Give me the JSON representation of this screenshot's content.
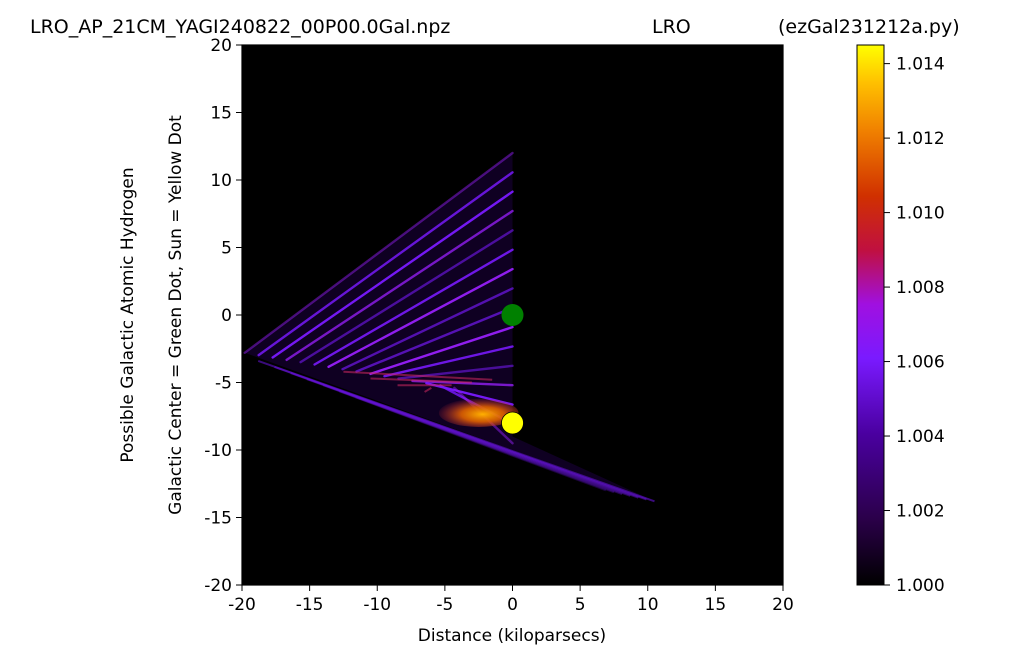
{
  "header": {
    "filename": "LRO_AP_21CM_YAGI240822_00P00.0Gal.npz",
    "station": "LRO",
    "program": "(ezGal231212a.py)"
  },
  "colors": {
    "background": "#000000",
    "violet": "#7a1aff",
    "orange": "#e08000",
    "sun_dot": "#ffff00",
    "center_dot": "#008000"
  },
  "chart_data": {
    "type": "heatmap",
    "colormap": "gnuplot",
    "xlabel": "Distance (kiloparsecs)",
    "ylabel_line1": "Possible Galactic Atomic Hydrogen",
    "ylabel_line2": "Galactic Center = Green Dot, Sun = Yellow Dot",
    "xlim": [
      -20,
      20
    ],
    "ylim": [
      -20,
      20
    ],
    "xticks": [
      -20,
      -15,
      -10,
      -5,
      0,
      5,
      10,
      15,
      20
    ],
    "yticks": [
      -20,
      -15,
      -10,
      -5,
      0,
      5,
      10,
      15,
      20
    ],
    "grid": false,
    "colorbar": {
      "min": 1.0,
      "max": 1.0145,
      "ticks": [
        "1.000",
        "1.002",
        "1.004",
        "1.006",
        "1.008",
        "1.010",
        "1.012",
        "1.014"
      ]
    },
    "markers": [
      {
        "label": "Galactic Center",
        "x": 0,
        "y": 0,
        "color": "green"
      },
      {
        "label": "Sun",
        "x": 0,
        "y": -8,
        "color": "yellow"
      }
    ],
    "emission_wedge": {
      "apex": [
        0,
        -8
      ],
      "upper_edge": [
        [
          0,
          12
        ],
        [
          -19.8,
          -2.8
        ]
      ],
      "lower_edge": [
        [
          -19.8,
          -2.8
        ],
        [
          10.5,
          -13.8
        ]
      ],
      "peak_region": {
        "x": [
          -5,
          0
        ],
        "y": [
          -8,
          -6.5
        ],
        "value": 1.012
      }
    }
  }
}
